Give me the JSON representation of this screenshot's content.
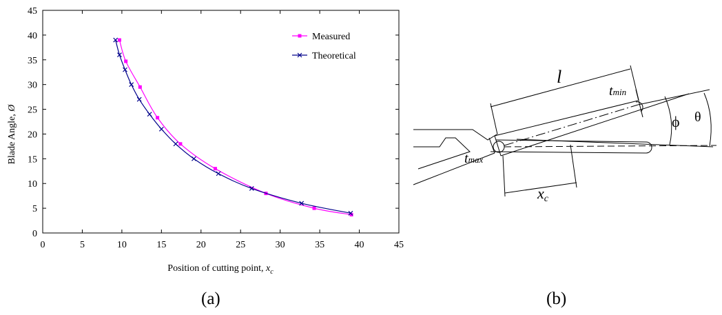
{
  "panels": {
    "a": "(a)",
    "b": "(b)"
  },
  "chart_data": {
    "type": "line",
    "xlabel": "Position of cutting point, ",
    "xlabel_sym": "x",
    "xlabel_sub": "c",
    "ylabel": "Blade Angle, ",
    "ylabel_sym": "Ø",
    "xlim": [
      0,
      45
    ],
    "ylim": [
      0,
      45
    ],
    "xticks": [
      "0",
      "5",
      "10",
      "15",
      "20",
      "25",
      "30",
      "35",
      "40",
      "45"
    ],
    "yticks": [
      "0",
      "5",
      "10",
      "15",
      "20",
      "25",
      "30",
      "35",
      "40",
      "45"
    ],
    "grid": false,
    "legend_position": "top-right",
    "series": [
      {
        "name": "Measured",
        "color": "#ff00ff",
        "marker": "square",
        "points": [
          [
            9.7,
            39
          ],
          [
            10.5,
            34.7
          ],
          [
            12.3,
            29.5
          ],
          [
            14.5,
            23.3
          ],
          [
            17.4,
            18
          ],
          [
            21.8,
            13
          ],
          [
            28.2,
            8
          ],
          [
            34.3,
            5
          ],
          [
            39.0,
            3.7
          ]
        ]
      },
      {
        "name": "Theoretical",
        "color": "#00008b",
        "marker": "x",
        "points": [
          [
            9.2,
            39
          ],
          [
            9.7,
            36
          ],
          [
            10.4,
            33
          ],
          [
            11.2,
            30
          ],
          [
            12.2,
            27
          ],
          [
            13.5,
            24
          ],
          [
            15.0,
            21
          ],
          [
            16.8,
            18
          ],
          [
            19.1,
            15
          ],
          [
            22.2,
            12
          ],
          [
            26.4,
            9
          ],
          [
            32.7,
            6
          ],
          [
            38.9,
            4
          ]
        ]
      }
    ]
  },
  "diagram": {
    "l": "l",
    "t_min": "t",
    "t_min_sub": "min",
    "t_max": "t",
    "t_max_sub": "max",
    "x_c": "x",
    "x_c_sub": "c",
    "phi": "ϕ",
    "theta": "θ"
  }
}
